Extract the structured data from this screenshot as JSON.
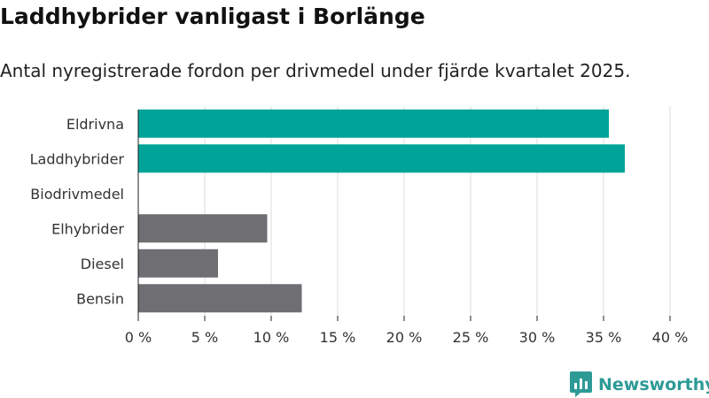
{
  "header": {
    "title": "Laddhybrider vanligast i Borlänge",
    "subtitle": "Antal nyregistrerade fordon per drivmedel under fjärde kvartalet 2025."
  },
  "brand": {
    "name": "Newsworthy",
    "icon": "newsworthy-logo-icon",
    "color": "#2d9a96"
  },
  "colors": {
    "highlight": "#00a398",
    "default": "#6e6e73",
    "grid": "#dddddd",
    "axis": "#222222"
  },
  "chart_data": {
    "type": "bar",
    "orientation": "horizontal",
    "categories": [
      "Eldrivna",
      "Laddhybrider",
      "Biodrivmedel",
      "Elhybrider",
      "Diesel",
      "Bensin"
    ],
    "values": [
      35.4,
      36.6,
      0,
      9.7,
      6.0,
      12.3
    ],
    "highlighted": [
      true,
      true,
      false,
      false,
      false,
      false
    ],
    "x_ticks": [
      0,
      5,
      10,
      15,
      20,
      25,
      30,
      35,
      40
    ],
    "x_tick_labels": [
      "0 %",
      "5 %",
      "10 %",
      "15 %",
      "20 %",
      "25 %",
      "30 %",
      "35 %",
      "40 %"
    ],
    "xlim": [
      0,
      40
    ],
    "unit": "%",
    "grid": true,
    "legend": "none"
  }
}
